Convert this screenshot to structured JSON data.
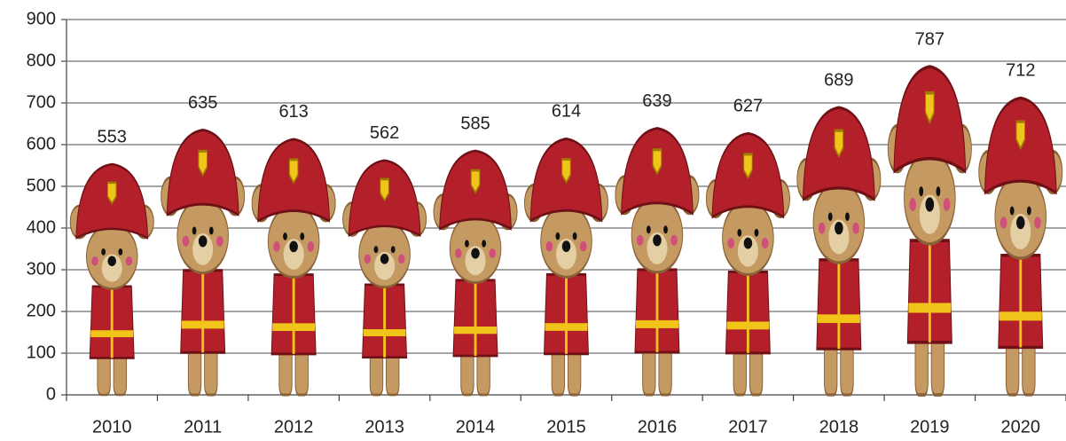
{
  "chart_data": {
    "type": "bar",
    "categories": [
      "2010",
      "2011",
      "2012",
      "2013",
      "2014",
      "2015",
      "2016",
      "2017",
      "2018",
      "2019",
      "2020"
    ],
    "values": [
      553,
      635,
      613,
      562,
      585,
      614,
      639,
      627,
      689,
      787,
      712
    ],
    "color": "#b3202a",
    "ylim": [
      0,
      900
    ],
    "yticks": [
      0,
      100,
      200,
      300,
      400,
      500,
      600,
      700,
      800,
      900
    ],
    "grid": true
  }
}
